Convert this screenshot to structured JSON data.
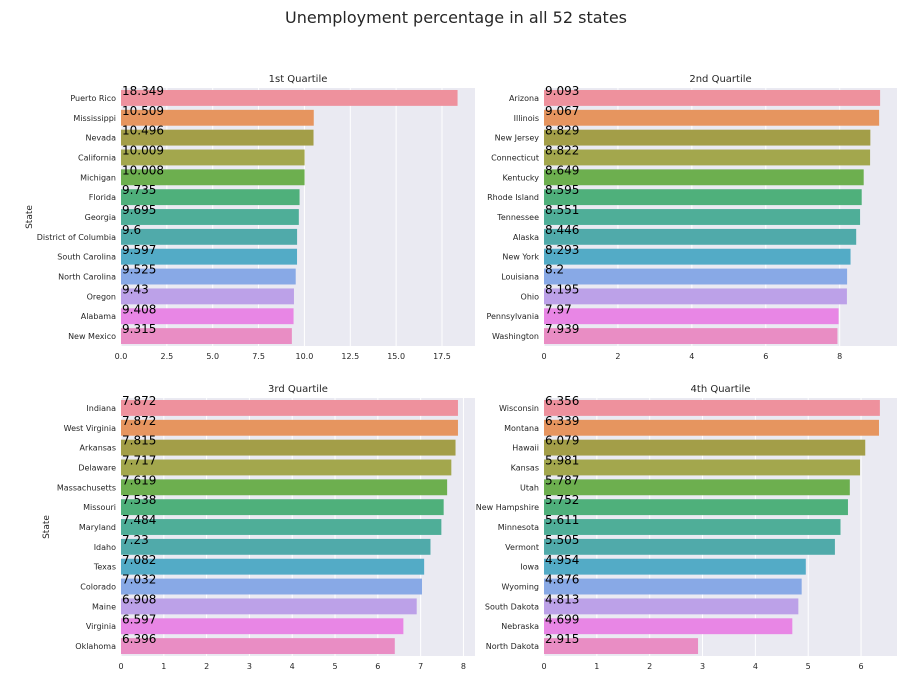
{
  "suptitle": "Unemployment percentage in all 52 states",
  "chart_data": [
    {
      "type": "bar",
      "orientation": "horizontal",
      "title": "1st Quartile",
      "xlabel": "",
      "ylabel": "State",
      "xlim": [
        0,
        19.3
      ],
      "xticks": [
        "0.0",
        "2.5",
        "5.0",
        "7.5",
        "10.0",
        "12.5",
        "15.0",
        "17.5"
      ],
      "categories": [
        "Puerto Rico",
        "Mississippi",
        "Nevada",
        "California",
        "Michigan",
        "Florida",
        "Georgia",
        "District of Columbia",
        "South Carolina",
        "North Carolina",
        "Oregon",
        "Alabama",
        "New Mexico"
      ],
      "values": [
        18.349,
        10.509,
        10.496,
        10.009,
        10.008,
        9.735,
        9.695,
        9.6,
        9.597,
        9.525,
        9.43,
        9.408,
        9.315
      ],
      "labels": [
        "18.349",
        "10.509",
        "10.496",
        "10.009",
        "10.008",
        "9.735",
        "9.695",
        "9.6",
        "9.597",
        "9.525",
        "9.43",
        "9.408",
        "9.315"
      ],
      "grid": true
    },
    {
      "type": "bar",
      "orientation": "horizontal",
      "title": "2nd Quartile",
      "xlabel": "",
      "ylabel": "",
      "xlim": [
        0,
        9.55
      ],
      "xticks": [
        "0",
        "2",
        "4",
        "6",
        "8"
      ],
      "categories": [
        "Arizona",
        "Illinois",
        "New Jersey",
        "Connecticut",
        "Kentucky",
        "Rhode Island",
        "Tennessee",
        "Alaska",
        "New York",
        "Louisiana",
        "Ohio",
        "Pennsylvania",
        "Washington"
      ],
      "values": [
        9.093,
        9.067,
        8.829,
        8.822,
        8.649,
        8.595,
        8.551,
        8.446,
        8.293,
        8.2,
        8.195,
        7.97,
        7.939
      ],
      "labels": [
        "9.093",
        "9.067",
        "8.829",
        "8.822",
        "8.649",
        "8.595",
        "8.551",
        "8.446",
        "8.293",
        "8.2",
        "8.195",
        "7.97",
        "7.939"
      ],
      "grid": true
    },
    {
      "type": "bar",
      "orientation": "horizontal",
      "title": "3rd Quartile",
      "xlabel": "",
      "ylabel": "State",
      "xlim": [
        0,
        8.27
      ],
      "xticks": [
        "0",
        "1",
        "2",
        "3",
        "4",
        "5",
        "6",
        "7",
        "8"
      ],
      "categories": [
        "Indiana",
        "West Virginia",
        "Arkansas",
        "Delaware",
        "Massachusetts",
        "Missouri",
        "Maryland",
        "Idaho",
        "Texas",
        "Colorado",
        "Maine",
        "Virginia",
        "Oklahoma"
      ],
      "values": [
        7.872,
        7.872,
        7.815,
        7.717,
        7.619,
        7.538,
        7.484,
        7.23,
        7.082,
        7.032,
        6.908,
        6.597,
        6.396
      ],
      "labels": [
        "7.872",
        "7.872",
        "7.815",
        "7.717",
        "7.619",
        "7.538",
        "7.484",
        "7.23",
        "7.082",
        "7.032",
        "6.908",
        "6.597",
        "6.396"
      ],
      "grid": true
    },
    {
      "type": "bar",
      "orientation": "horizontal",
      "title": "4th Quartile",
      "xlabel": "",
      "ylabel": "",
      "xlim": [
        0,
        6.68
      ],
      "xticks": [
        "0",
        "1",
        "2",
        "3",
        "4",
        "5",
        "6"
      ],
      "categories": [
        "Wisconsin",
        "Montana",
        "Hawaii",
        "Kansas",
        "Utah",
        "New Hampshire",
        "Minnesota",
        "Vermont",
        "Iowa",
        "Wyoming",
        "South Dakota",
        "Nebraska",
        "North Dakota"
      ],
      "values": [
        6.356,
        6.339,
        6.079,
        5.981,
        5.787,
        5.752,
        5.611,
        5.505,
        4.954,
        4.876,
        4.813,
        4.699,
        2.915
      ],
      "labels": [
        "6.356",
        "6.339",
        "6.079",
        "5.981",
        "5.787",
        "5.752",
        "5.611",
        "5.505",
        "4.954",
        "4.876",
        "4.813",
        "4.699",
        "2.915"
      ],
      "grid": true
    }
  ],
  "style": {
    "bar_colors": [
      "#ee919d",
      "#e6955f",
      "#a39e48",
      "#a3a74d",
      "#6daf4f",
      "#4fb07b",
      "#4fae98",
      "#50aaaa",
      "#53abc6",
      "#88a9e6",
      "#bca1e8",
      "#e886e5",
      "#e98dc4"
    ],
    "axes_bg": "#eaeaf2",
    "grid_color": "#ffffff",
    "text_color": "#262626"
  }
}
